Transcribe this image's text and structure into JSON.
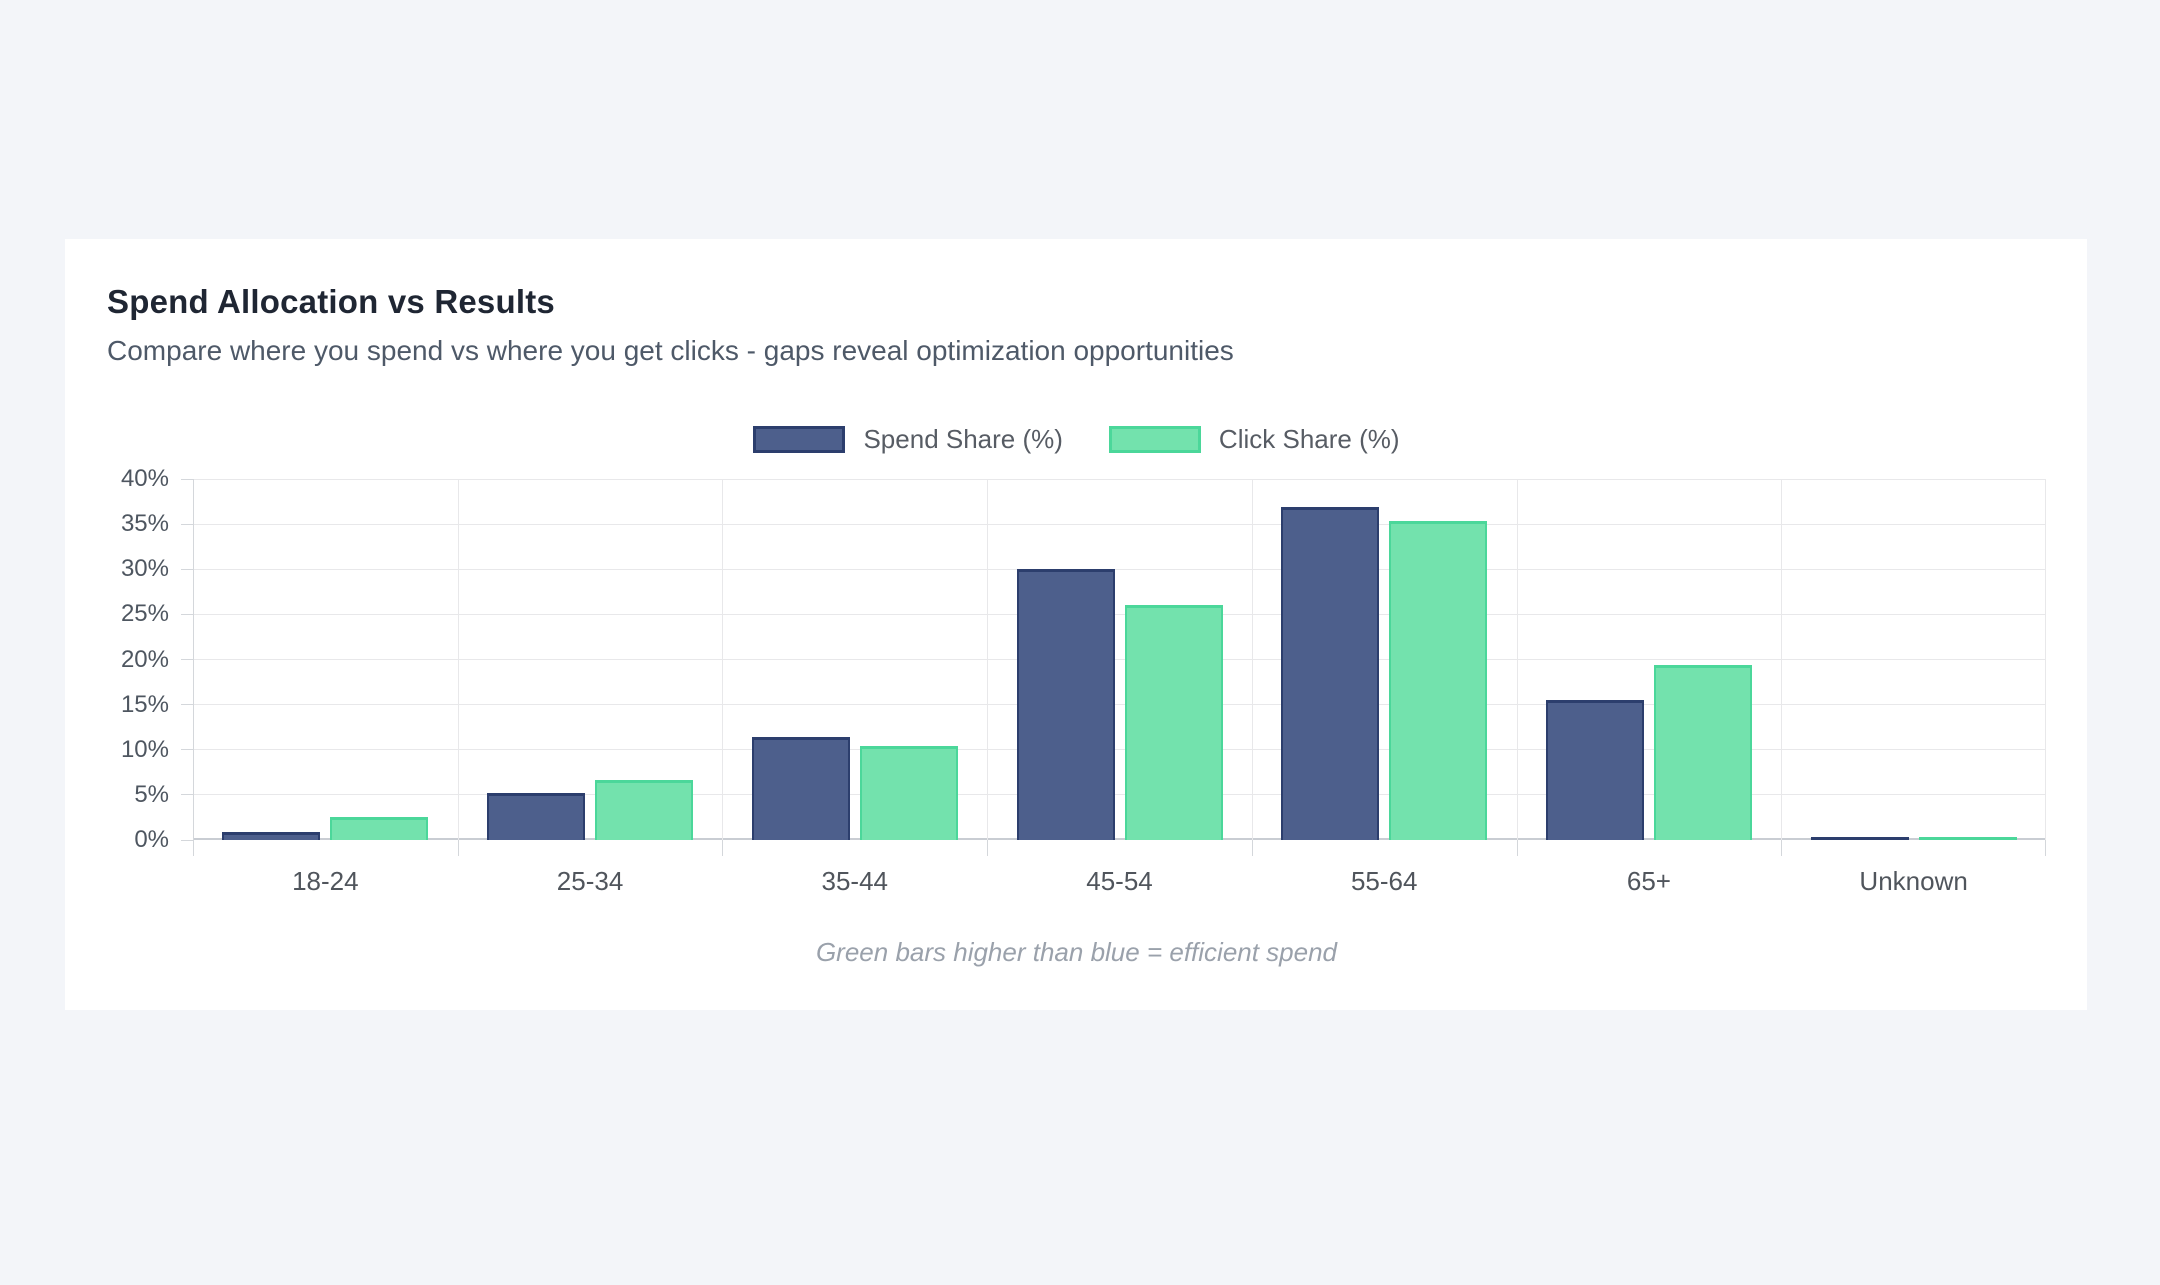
{
  "page": {
    "background_color": "#f3f5f9",
    "card_color": "#ffffff"
  },
  "header": {
    "title": "Spend Allocation vs Results",
    "subtitle": "Compare where you spend vs where you get clicks - gaps reveal optimization opportunities"
  },
  "footnote": "Green bars higher than blue = efficient spend",
  "chart_data": {
    "type": "bar",
    "title": "Spend Allocation vs Results",
    "categories": [
      "18-24",
      "25-34",
      "35-44",
      "45-54",
      "55-64",
      "65+",
      "Unknown"
    ],
    "series": [
      {
        "name": "Spend Share (%)",
        "color": "#4d5f8c",
        "border_color": "#2c3e6d",
        "values": [
          0.9,
          5.2,
          11.4,
          30.0,
          36.9,
          15.5,
          0.2
        ]
      },
      {
        "name": "Click Share (%)",
        "color": "#73e2ad",
        "border_color": "#4bd79a",
        "values": [
          2.5,
          6.6,
          10.4,
          26.0,
          35.3,
          19.4,
          0.2
        ]
      }
    ],
    "xlabel": "",
    "ylabel": "",
    "ylim": [
      0,
      40
    ],
    "y_ticks": [
      "0%",
      "5%",
      "10%",
      "15%",
      "20%",
      "25%",
      "30%",
      "35%",
      "40%"
    ],
    "grid": true,
    "legend_position": "top"
  }
}
